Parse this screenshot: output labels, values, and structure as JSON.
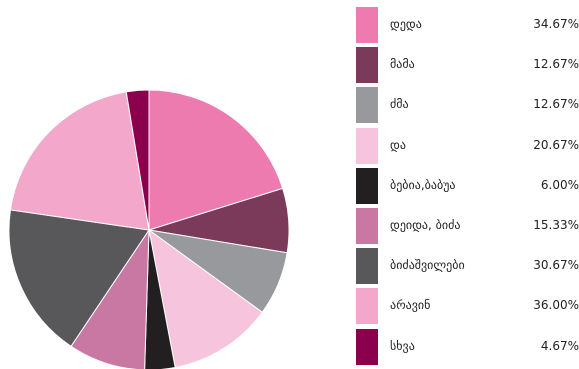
{
  "chart_data": {
    "type": "pie",
    "title": "",
    "legend_placement": "right",
    "slices": [
      {
        "label": "დედა",
        "value_label": "34.67%",
        "share": 20.2,
        "color": "#ee7bb0"
      },
      {
        "label": "მამა",
        "value_label": "12.67%",
        "share": 7.4,
        "color": "#7b3a5a"
      },
      {
        "label": "ძმა",
        "value_label": "12.67%",
        "share": 7.4,
        "color": "#98999c"
      },
      {
        "label": "და",
        "value_label": "20.67%",
        "share": 12.0,
        "color": "#f6c4dc"
      },
      {
        "label": "ბებია,ბაბუა",
        "value_label": "6.00%",
        "share": 3.5,
        "color": "#231f20"
      },
      {
        "label": "დეიდა, ბიძა",
        "value_label": "15.33%",
        "share": 8.9,
        "color": "#c978a3"
      },
      {
        "label": "ბიძაშვილები",
        "value_label": "30.67%",
        "share": 17.9,
        "color": "#58585a"
      },
      {
        "label": "არავინ",
        "value_label": "36.00%",
        "share": 20.1,
        "color": "#f2a7cb"
      },
      {
        "label": "სხვა",
        "value_label": "4.67%",
        "share": 2.6,
        "color": "#8b004d"
      }
    ]
  }
}
